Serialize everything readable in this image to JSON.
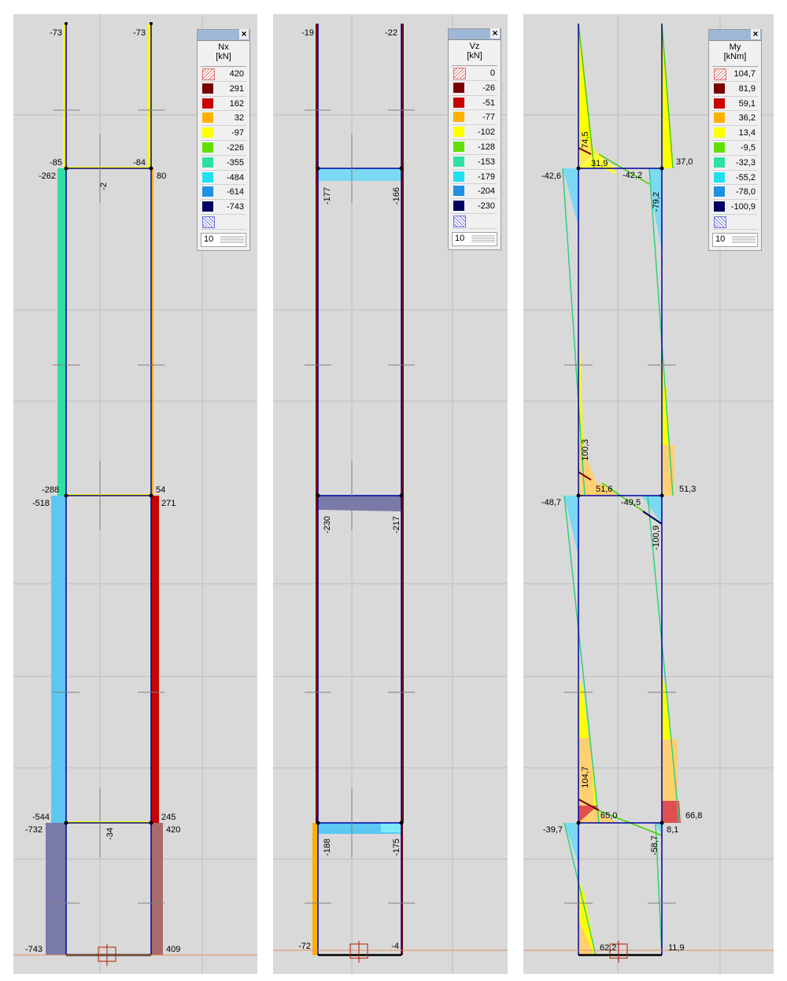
{
  "panels": [
    {
      "id": "nx",
      "legend": {
        "title_line1": "Nx",
        "title_line2": "[kN]",
        "values": [
          "420",
          "291",
          "162",
          "32",
          "-97",
          "-226",
          "-355",
          "-484",
          "-614",
          "-743"
        ],
        "colors": [
          "#7a0000",
          "#c80000",
          "#ffb000",
          "#ffff00",
          "#60e000",
          "#30e0a0",
          "#20e0f0",
          "#2090e0",
          "#000060"
        ],
        "footer": "10"
      },
      "labels": [
        "-73",
        "-73",
        "-85",
        "-84",
        "-262",
        "80",
        "-2",
        "-288",
        "54",
        "-518",
        "271",
        "-544",
        "245",
        "-732",
        "420",
        "-34",
        "-743",
        "409"
      ]
    },
    {
      "id": "vz",
      "legend": {
        "title_line1": "Vz",
        "title_line2": "[kN]",
        "values": [
          "0",
          "-26",
          "-51",
          "-77",
          "-102",
          "-128",
          "-153",
          "-179",
          "-204",
          "-230"
        ],
        "colors": [
          "#7a0000",
          "#c80000",
          "#ffb000",
          "#ffff00",
          "#60e000",
          "#30e0a0",
          "#20e0f0",
          "#2090e0",
          "#000060"
        ],
        "footer": "10"
      },
      "labels": [
        "-19",
        "-22",
        "-177",
        "-166",
        "-230",
        "-217",
        "-188",
        "-175",
        "-72",
        "-4"
      ]
    },
    {
      "id": "my",
      "legend": {
        "title_line1": "My",
        "title_line2": "[kNm]",
        "values": [
          "104,7",
          "81,9",
          "59,1",
          "36,2",
          "13,4",
          "-9,5",
          "-32,3",
          "-55,2",
          "-78,0",
          "-100,9"
        ],
        "colors": [
          "#7a0000",
          "#c80000",
          "#ffb000",
          "#ffff00",
          "#60e000",
          "#30e0a0",
          "#20e0f0",
          "#2090e0",
          "#000060"
        ],
        "footer": "10"
      },
      "labels": [
        "74,5",
        "31,9",
        "37,0",
        "-42,6",
        "-42,2",
        "-79,2",
        "100,3",
        "51,6",
        "51,3",
        "-48,7",
        "-49,5",
        "-100,9",
        "104,7",
        "65,0",
        "66,8",
        "-39,7",
        "8,1",
        "-58,7",
        "62,2",
        "11,9"
      ]
    }
  ]
}
